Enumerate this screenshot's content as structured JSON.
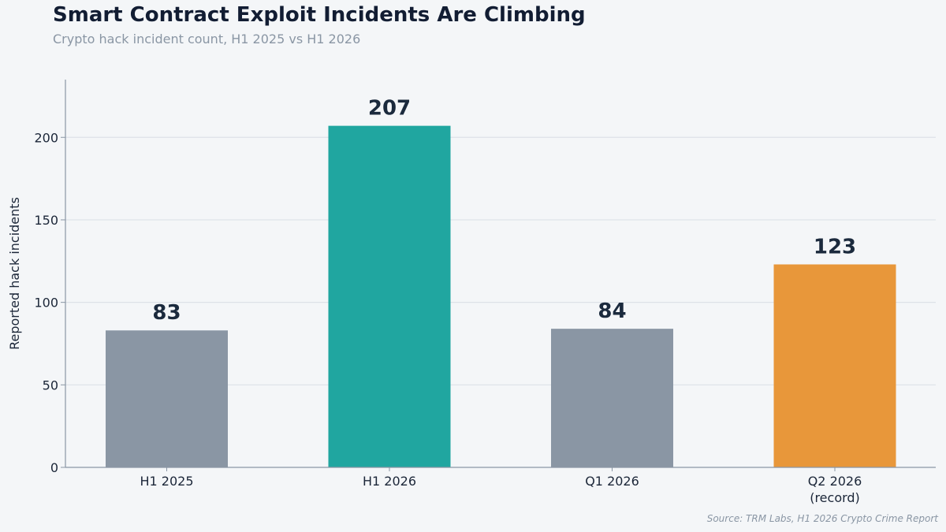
{
  "title": "Smart Contract Exploit Incidents Are Climbing",
  "subtitle": "Crypto hack incident count, H1 2025 vs H1 2026",
  "source": "Source: TRM Labs, H1 2026 Crypto Crime Report",
  "chart_data": {
    "type": "bar",
    "categories": [
      [
        "H1 2025"
      ],
      [
        "H1 2026"
      ],
      [
        "Q1 2026"
      ],
      [
        "Q2 2026",
        "(record)"
      ]
    ],
    "values": [
      83,
      207,
      84,
      123
    ],
    "colors": [
      "#8a96a4",
      "#20a6a0",
      "#8a96a4",
      "#e8973a"
    ],
    "xlabel": "",
    "ylabel": "Reported hack incidents",
    "ylim": [
      0,
      235
    ],
    "yticks": [
      0,
      50,
      100,
      150,
      200
    ],
    "grid": "horizontal"
  }
}
